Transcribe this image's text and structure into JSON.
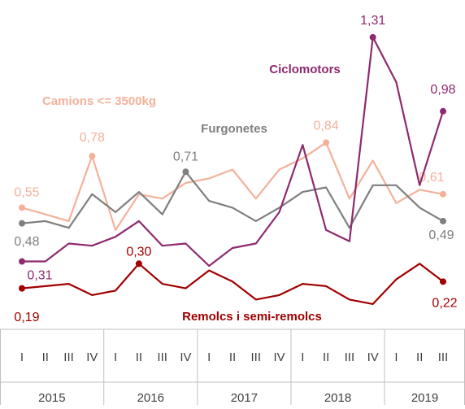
{
  "chart_data": {
    "type": "line",
    "categories": [
      "I",
      "II",
      "III",
      "IV",
      "I",
      "II",
      "III",
      "IV",
      "I",
      "II",
      "III",
      "IV",
      "I",
      "II",
      "III",
      "IV",
      "I",
      "II",
      "III"
    ],
    "groups": [
      "2015",
      "2016",
      "2017",
      "2018",
      "2019"
    ],
    "ylim": [
      0,
      1.4
    ],
    "series": [
      {
        "name": "Camions <= 3500kg",
        "color": "#f4b19a",
        "values": [
          0.55,
          0.52,
          0.49,
          0.78,
          0.45,
          0.61,
          0.59,
          0.66,
          0.68,
          0.72,
          0.59,
          0.72,
          0.77,
          0.84,
          0.59,
          0.76,
          0.57,
          0.63,
          0.61
        ],
        "value_labels": [
          "0,55",
          null,
          null,
          "0,78",
          null,
          null,
          null,
          null,
          null,
          null,
          null,
          null,
          null,
          "0,84",
          null,
          null,
          null,
          null,
          "0,61"
        ]
      },
      {
        "name": "Furgonetes",
        "color": "#7f7f7f",
        "values": [
          0.48,
          0.49,
          0.46,
          0.61,
          0.53,
          0.62,
          0.52,
          0.71,
          0.58,
          0.55,
          0.49,
          0.55,
          0.62,
          0.64,
          0.46,
          0.65,
          0.65,
          0.55,
          0.49
        ],
        "value_labels": [
          "0,48",
          null,
          null,
          null,
          null,
          null,
          null,
          "0,71",
          null,
          null,
          null,
          null,
          null,
          null,
          null,
          null,
          null,
          null,
          "0,49"
        ]
      },
      {
        "name": "Ciclomotors",
        "color": "#8e2a6e",
        "values": [
          0.31,
          0.31,
          0.39,
          0.38,
          0.42,
          0.49,
          0.38,
          0.39,
          0.29,
          0.37,
          0.39,
          0.53,
          0.83,
          0.45,
          0.4,
          1.31,
          1.11,
          0.65,
          0.98
        ],
        "value_labels": [
          "0,31",
          null,
          null,
          null,
          null,
          null,
          null,
          null,
          null,
          null,
          null,
          null,
          null,
          null,
          null,
          "1,31",
          null,
          null,
          "0,98"
        ]
      },
      {
        "name": "Remolcs i semi-remolcs",
        "color": "#a00000",
        "values": [
          0.19,
          0.2,
          0.21,
          0.16,
          0.18,
          0.3,
          0.21,
          0.19,
          0.27,
          0.22,
          0.14,
          0.16,
          0.21,
          0.2,
          0.14,
          0.12,
          0.23,
          0.3,
          0.22
        ],
        "value_labels": [
          "0,19",
          null,
          null,
          null,
          null,
          "0,30",
          null,
          null,
          null,
          null,
          null,
          null,
          null,
          null,
          null,
          null,
          null,
          null,
          "0,22"
        ]
      }
    ]
  }
}
